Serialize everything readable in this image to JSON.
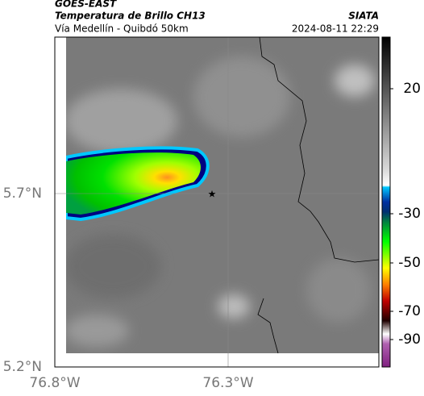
{
  "header": {
    "left_title": "GOES-EAST",
    "left_subtitle": "Temperatura de Brillo CH13",
    "left_caption": "Vía Medellín - Quibdó 50km",
    "right_subtitle": "SIATA",
    "right_caption": "2024-08-11 22:29"
  },
  "map": {
    "y_ticks": [
      "5.7°N",
      "5.2°N"
    ],
    "x_ticks": [
      "76.8°W",
      "76.3°W"
    ]
  },
  "colorbar": {
    "ticks": [
      "20",
      "-30",
      "-50",
      "-70",
      "-90"
    ]
  }
}
